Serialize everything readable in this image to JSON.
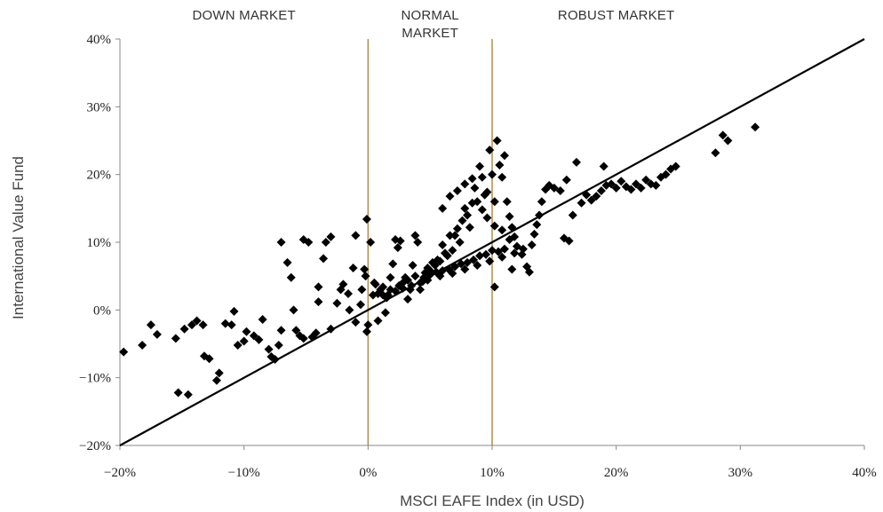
{
  "chart_data": {
    "type": "scatter",
    "title": "",
    "xlabel": "MSCI EAFE Index (in USD)",
    "ylabel": "International Value Fund",
    "xlim": [
      -0.2,
      0.4
    ],
    "ylim": [
      -0.2,
      0.4
    ],
    "x_ticks": [
      {
        "value": -0.2,
        "label": "−20%"
      },
      {
        "value": -0.1,
        "label": "−10%"
      },
      {
        "value": 0.0,
        "label": "0%"
      },
      {
        "value": 0.1,
        "label": "10%"
      },
      {
        "value": 0.2,
        "label": "20%"
      },
      {
        "value": 0.3,
        "label": "30%"
      },
      {
        "value": 0.4,
        "label": "40%"
      }
    ],
    "y_ticks": [
      {
        "value": -0.2,
        "label": "−20%"
      },
      {
        "value": -0.1,
        "label": "−10%"
      },
      {
        "value": 0.0,
        "label": "0%"
      },
      {
        "value": 0.1,
        "label": "10%"
      },
      {
        "value": 0.2,
        "label": "20%"
      },
      {
        "value": 0.3,
        "label": "30%"
      },
      {
        "value": 0.4,
        "label": "40%"
      }
    ],
    "grid": false,
    "reference_line": {
      "x": [
        -0.2,
        0.4
      ],
      "y": [
        -0.2,
        0.4
      ],
      "color": "#000000"
    },
    "vertical_lines": [
      {
        "x": 0.0,
        "color": "#b08d4a"
      },
      {
        "x": 0.1,
        "color": "#b08d4a"
      }
    ],
    "regions": [
      {
        "label_lines": [
          "DOWN MARKET"
        ],
        "x_center": -0.1
      },
      {
        "label_lines": [
          "NORMAL",
          "MARKET"
        ],
        "x_center": 0.05
      },
      {
        "label_lines": [
          "ROBUST MARKET"
        ],
        "x_center": 0.2
      }
    ],
    "marker": {
      "shape": "diamond",
      "color": "#000000"
    },
    "points": [
      [
        -0.197,
        -0.062
      ],
      [
        -0.182,
        -0.052
      ],
      [
        -0.175,
        -0.022
      ],
      [
        -0.17,
        -0.036
      ],
      [
        -0.155,
        -0.042
      ],
      [
        -0.153,
        -0.122
      ],
      [
        -0.145,
        -0.125
      ],
      [
        -0.148,
        -0.028
      ],
      [
        -0.142,
        -0.022
      ],
      [
        -0.138,
        -0.016
      ],
      [
        -0.133,
        -0.022
      ],
      [
        -0.132,
        -0.068
      ],
      [
        -0.128,
        -0.072
      ],
      [
        -0.122,
        -0.104
      ],
      [
        -0.12,
        -0.093
      ],
      [
        -0.115,
        -0.02
      ],
      [
        -0.11,
        -0.022
      ],
      [
        -0.108,
        -0.002
      ],
      [
        -0.105,
        -0.052
      ],
      [
        -0.1,
        -0.046
      ],
      [
        -0.098,
        -0.032
      ],
      [
        -0.092,
        -0.038
      ],
      [
        -0.088,
        -0.044
      ],
      [
        -0.085,
        -0.014
      ],
      [
        -0.08,
        -0.058
      ],
      [
        -0.078,
        -0.069
      ],
      [
        -0.075,
        -0.073
      ],
      [
        -0.072,
        -0.052
      ],
      [
        -0.07,
        -0.03
      ],
      [
        -0.07,
        0.1
      ],
      [
        -0.065,
        0.07
      ],
      [
        -0.062,
        0.048
      ],
      [
        -0.06,
        0.0
      ],
      [
        -0.058,
        -0.03
      ],
      [
        -0.055,
        -0.038
      ],
      [
        -0.052,
        -0.042
      ],
      [
        -0.052,
        0.104
      ],
      [
        -0.048,
        0.1
      ],
      [
        -0.045,
        -0.04
      ],
      [
        -0.042,
        -0.034
      ],
      [
        -0.04,
        0.034
      ],
      [
        -0.04,
        0.012
      ],
      [
        -0.036,
        0.076
      ],
      [
        -0.034,
        0.1
      ],
      [
        -0.03,
        0.108
      ],
      [
        -0.03,
        -0.028
      ],
      [
        -0.025,
        0.01
      ],
      [
        -0.022,
        0.03
      ],
      [
        -0.02,
        0.038
      ],
      [
        -0.016,
        0.024
      ],
      [
        -0.015,
        0.0
      ],
      [
        -0.012,
        0.062
      ],
      [
        -0.01,
        0.11
      ],
      [
        -0.01,
        -0.018
      ],
      [
        -0.006,
        0.008
      ],
      [
        -0.005,
        0.03
      ],
      [
        -0.003,
        0.06
      ],
      [
        -0.002,
        0.05
      ],
      [
        -0.001,
        -0.032
      ],
      [
        0.0,
        -0.022
      ],
      [
        -0.001,
        0.134
      ],
      [
        0.002,
        0.1
      ],
      [
        0.004,
        0.022
      ],
      [
        0.006,
        0.038
      ],
      [
        0.008,
        -0.016
      ],
      [
        0.01,
        0.03
      ],
      [
        0.012,
        0.022
      ],
      [
        0.014,
        -0.004
      ],
      [
        0.016,
        0.022
      ],
      [
        0.018,
        0.048
      ],
      [
        0.02,
        0.068
      ],
      [
        0.022,
        0.104
      ],
      [
        0.024,
        0.092
      ],
      [
        0.026,
        0.102
      ],
      [
        0.028,
        0.04
      ],
      [
        0.03,
        0.048
      ],
      [
        0.032,
        0.016
      ],
      [
        0.034,
        0.03
      ],
      [
        0.036,
        0.066
      ],
      [
        0.038,
        0.11
      ],
      [
        0.04,
        0.1
      ],
      [
        0.042,
        0.03
      ],
      [
        0.044,
        0.042
      ],
      [
        0.046,
        0.055
      ],
      [
        0.048,
        0.062
      ],
      [
        0.05,
        0.058
      ],
      [
        0.052,
        0.07
      ],
      [
        0.054,
        0.066
      ],
      [
        0.056,
        0.074
      ],
      [
        0.058,
        0.072
      ],
      [
        0.06,
        0.096
      ],
      [
        0.062,
        0.084
      ],
      [
        0.064,
        0.08
      ],
      [
        0.066,
        0.11
      ],
      [
        0.068,
        0.088
      ],
      [
        0.07,
        0.11
      ],
      [
        0.072,
        0.12
      ],
      [
        0.074,
        0.1
      ],
      [
        0.076,
        0.132
      ],
      [
        0.078,
        0.15
      ],
      [
        0.08,
        0.14
      ],
      [
        0.082,
        0.122
      ],
      [
        0.084,
        0.158
      ],
      [
        0.086,
        0.18
      ],
      [
        0.088,
        0.16
      ],
      [
        0.09,
        0.212
      ],
      [
        0.092,
        0.196
      ],
      [
        0.094,
        0.17
      ],
      [
        0.096,
        0.174
      ],
      [
        0.098,
        0.236
      ],
      [
        0.1,
        0.2
      ],
      [
        0.102,
        0.16
      ],
      [
        0.104,
        0.25
      ],
      [
        0.106,
        0.214
      ],
      [
        0.108,
        0.196
      ],
      [
        0.11,
        0.228
      ],
      [
        0.112,
        0.16
      ],
      [
        0.114,
        0.138
      ],
      [
        0.116,
        0.122
      ],
      [
        0.118,
        0.108
      ],
      [
        0.005,
        0.04
      ],
      [
        0.012,
        0.034
      ],
      [
        0.018,
        0.03
      ],
      [
        0.025,
        0.036
      ],
      [
        0.032,
        0.044
      ],
      [
        0.038,
        0.05
      ],
      [
        0.045,
        0.048
      ],
      [
        0.05,
        0.052
      ],
      [
        0.055,
        0.056
      ],
      [
        0.06,
        0.058
      ],
      [
        0.065,
        0.06
      ],
      [
        0.07,
        0.064
      ],
      [
        0.075,
        0.068
      ],
      [
        0.08,
        0.07
      ],
      [
        0.085,
        0.074
      ],
      [
        0.09,
        0.08
      ],
      [
        0.095,
        0.082
      ],
      [
        0.1,
        0.088
      ],
      [
        0.105,
        0.086
      ],
      [
        0.11,
        0.09
      ],
      [
        0.008,
        0.024
      ],
      [
        0.015,
        0.018
      ],
      [
        0.022,
        0.028
      ],
      [
        0.028,
        0.032
      ],
      [
        0.035,
        0.036
      ],
      [
        0.042,
        0.04
      ],
      [
        0.048,
        0.044
      ],
      [
        0.058,
        0.05
      ],
      [
        0.068,
        0.054
      ],
      [
        0.078,
        0.06
      ],
      [
        0.088,
        0.066
      ],
      [
        0.098,
        0.072
      ],
      [
        0.108,
        0.078
      ],
      [
        0.118,
        0.084
      ],
      [
        0.06,
        0.15
      ],
      [
        0.066,
        0.168
      ],
      [
        0.072,
        0.176
      ],
      [
        0.078,
        0.186
      ],
      [
        0.084,
        0.194
      ],
      [
        0.092,
        0.148
      ],
      [
        0.096,
        0.136
      ],
      [
        0.102,
        0.124
      ],
      [
        0.108,
        0.118
      ],
      [
        0.114,
        0.104
      ],
      [
        0.12,
        0.094
      ],
      [
        0.125,
        0.09
      ],
      [
        0.13,
        0.056
      ],
      [
        0.132,
        0.096
      ],
      [
        0.134,
        0.112
      ],
      [
        0.136,
        0.126
      ],
      [
        0.138,
        0.14
      ],
      [
        0.14,
        0.16
      ],
      [
        0.143,
        0.178
      ],
      [
        0.146,
        0.184
      ],
      [
        0.15,
        0.18
      ],
      [
        0.155,
        0.176
      ],
      [
        0.158,
        0.106
      ],
      [
        0.16,
        0.192
      ],
      [
        0.162,
        0.102
      ],
      [
        0.165,
        0.14
      ],
      [
        0.168,
        0.218
      ],
      [
        0.172,
        0.158
      ],
      [
        0.176,
        0.17
      ],
      [
        0.18,
        0.162
      ],
      [
        0.184,
        0.168
      ],
      [
        0.188,
        0.176
      ],
      [
        0.19,
        0.212
      ],
      [
        0.192,
        0.184
      ],
      [
        0.196,
        0.186
      ],
      [
        0.2,
        0.18
      ],
      [
        0.204,
        0.19
      ],
      [
        0.208,
        0.182
      ],
      [
        0.212,
        0.178
      ],
      [
        0.216,
        0.186
      ],
      [
        0.22,
        0.18
      ],
      [
        0.224,
        0.192
      ],
      [
        0.228,
        0.186
      ],
      [
        0.232,
        0.184
      ],
      [
        0.236,
        0.196
      ],
      [
        0.24,
        0.2
      ],
      [
        0.244,
        0.208
      ],
      [
        0.248,
        0.212
      ],
      [
        0.28,
        0.232
      ],
      [
        0.286,
        0.258
      ],
      [
        0.29,
        0.25
      ],
      [
        0.312,
        0.27
      ],
      [
        0.102,
        0.034
      ],
      [
        0.124,
        0.082
      ],
      [
        0.116,
        0.06
      ],
      [
        0.128,
        0.064
      ]
    ]
  }
}
